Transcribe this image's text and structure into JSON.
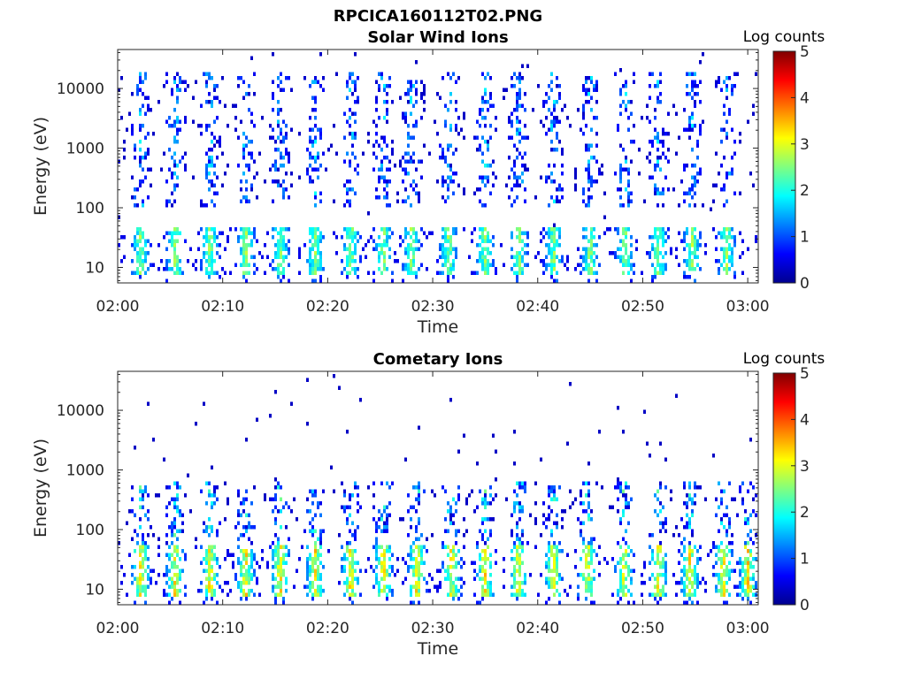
{
  "figure": {
    "title": "RPCICA160112T02.PNG"
  },
  "colormap": {
    "name": "jet",
    "stops": [
      "#00008f",
      "#0000ff",
      "#0080ff",
      "#00ffff",
      "#80ff80",
      "#ffff00",
      "#ff8000",
      "#ff0000",
      "#800000"
    ]
  },
  "chart_data": [
    {
      "type": "heatmap",
      "title": "Solar Wind Ions",
      "xlabel": "Time",
      "ylabel": "Energy (eV)",
      "x_range": [
        "02:00",
        "03:01"
      ],
      "x_ticks": [
        "02:00",
        "02:10",
        "02:20",
        "02:30",
        "02:40",
        "02:50",
        "03:00"
      ],
      "y_scale": "log",
      "y_range": [
        5.5,
        45000
      ],
      "y_ticks": [
        "10",
        "100",
        "1000",
        "10000"
      ],
      "colorbar": {
        "label": "Log counts",
        "range": [
          0,
          5
        ],
        "ticks": [
          "0",
          "1",
          "2",
          "3",
          "4",
          "5"
        ]
      },
      "activity": {
        "bursts_minutes": [
          2.2,
          5.5,
          8.8,
          12.2,
          15.5,
          18.8,
          22.2,
          25.3,
          28.0,
          31.5,
          35.0,
          38.2,
          41.5,
          45.0,
          48.3,
          51.5,
          54.7,
          58.0
        ],
        "peak_log_counts": 2.5,
        "main_energy_band_eV": [
          10,
          50
        ],
        "scattered_energy_band_eV": [
          100,
          20000
        ]
      }
    },
    {
      "type": "heatmap",
      "title": "Cometary Ions",
      "xlabel": "Time",
      "ylabel": "Energy (eV)",
      "x_range": [
        "02:00",
        "03:01"
      ],
      "x_ticks": [
        "02:00",
        "02:10",
        "02:20",
        "02:30",
        "02:40",
        "02:50",
        "03:00"
      ],
      "y_scale": "log",
      "y_range": [
        5.5,
        45000
      ],
      "y_ticks": [
        "10",
        "100",
        "1000",
        "10000"
      ],
      "colorbar": {
        "label": "Log counts",
        "range": [
          0,
          5
        ],
        "ticks": [
          "0",
          "1",
          "2",
          "3",
          "4",
          "5"
        ]
      },
      "activity": {
        "bursts_minutes": [
          2.2,
          5.5,
          8.8,
          12.2,
          15.5,
          18.8,
          22.2,
          25.3,
          28.5,
          31.8,
          35.0,
          38.2,
          41.5,
          44.7,
          48.2,
          51.5,
          54.5,
          57.7,
          60.0
        ],
        "peak_log_counts": 3.2,
        "main_energy_band_eV": [
          10,
          60
        ],
        "scattered_energy_band_eV": [
          60,
          700
        ]
      }
    }
  ]
}
